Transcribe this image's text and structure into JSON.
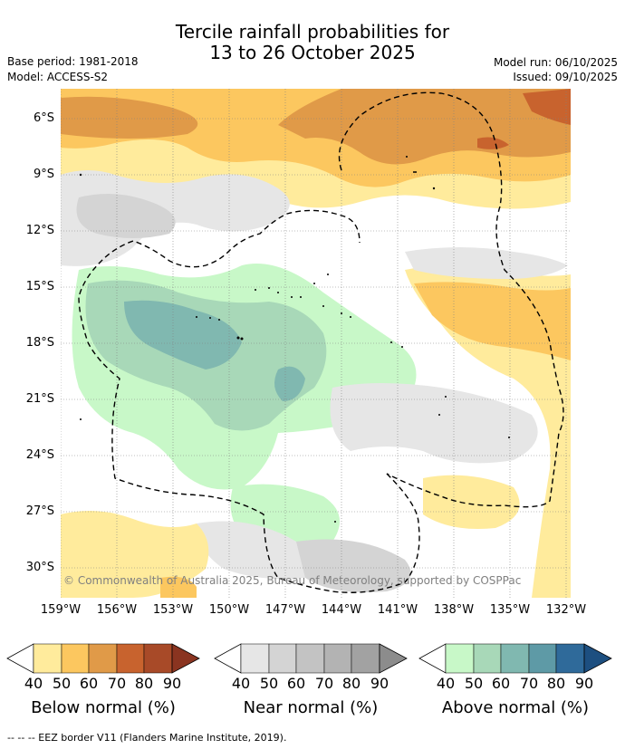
{
  "title_line1": "Tercile rainfall probabilities for",
  "title_line2": "13 to 26 October 2025",
  "base_period": "Base period: 1981-2018",
  "model": "Model: ACCESS-S2",
  "model_run": "Model run: 06/10/2025",
  "issued": "Issued: 09/10/2025",
  "lat_labels": [
    "6°S",
    "9°S",
    "12°S",
    "15°S",
    "18°S",
    "21°S",
    "24°S",
    "27°S",
    "30°S"
  ],
  "lon_labels": [
    "159°W",
    "156°W",
    "153°W",
    "150°W",
    "147°W",
    "144°W",
    "141°W",
    "138°W",
    "135°W",
    "132°W"
  ],
  "credit": "© Commonwealth of Australia 2025, Bureau of Meteorology, supported by COSPPac",
  "colorbars": [
    {
      "title": "Below normal (%)",
      "labels": [
        "40",
        "50",
        "60",
        "70",
        "80",
        "90"
      ],
      "colors": [
        "#ffeb9c",
        "#fcc75f",
        "#e09a48",
        "#c8632e",
        "#a84a28",
        "#8a3420"
      ]
    },
    {
      "title": "Near normal (%)",
      "labels": [
        "40",
        "50",
        "60",
        "70",
        "80",
        "90"
      ],
      "colors": [
        "#e6e6e6",
        "#d4d4d4",
        "#c3c3c3",
        "#b3b3b3",
        "#a2a2a2",
        "#8c8c8c"
      ]
    },
    {
      "title": "Above normal (%)",
      "labels": [
        "40",
        "50",
        "60",
        "70",
        "80",
        "90"
      ],
      "colors": [
        "#c8f8c8",
        "#a8d8b8",
        "#80b8b0",
        "#5e9aa6",
        "#2f6a9a",
        "#1d4f80"
      ]
    }
  ],
  "eez_legend": "--  --  -- EEZ border V11 (Flanders Marine Institute, 2019)."
}
